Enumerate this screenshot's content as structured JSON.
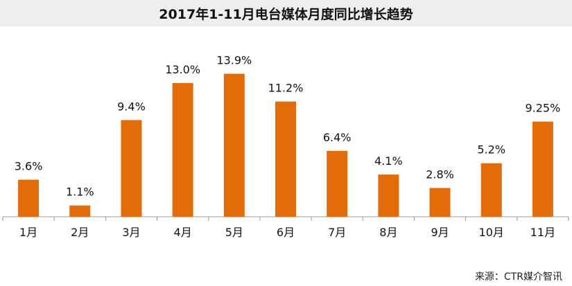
{
  "title": "2017年1-11月电台媒体月度同比增长趋势",
  "source": "来源：CTR媒介智讯",
  "colors": {
    "bar": "#E36C0A",
    "axis": "#9a9a9a",
    "text": "#111111"
  },
  "chart_data": {
    "type": "bar",
    "categories": [
      "1月",
      "2月",
      "3月",
      "4月",
      "5月",
      "6月",
      "7月",
      "8月",
      "9月",
      "10月",
      "11月"
    ],
    "values": [
      3.6,
      1.1,
      9.4,
      13.0,
      13.9,
      11.2,
      6.4,
      4.1,
      2.8,
      5.2,
      9.25
    ],
    "value_labels": [
      "3.6%",
      "1.1%",
      "9.4%",
      "13.0%",
      "13.9%",
      "11.2%",
      "6.4%",
      "4.1%",
      "2.8%",
      "5.2%",
      "9.25%"
    ],
    "title": "2017年1-11月电台媒体月度同比增长趋势",
    "xlabel": "",
    "ylabel": "",
    "ylim": [
      0,
      14
    ],
    "grid": false,
    "legend": "none"
  }
}
